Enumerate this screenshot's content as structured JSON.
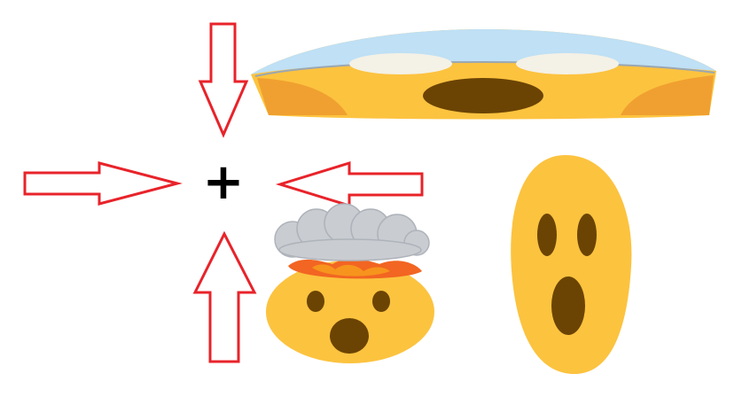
{
  "center_symbol": "+",
  "colors": {
    "arrow_stroke": "#e8232a",
    "face_yellow": "#fcc33f",
    "face_shade": "#f0a030",
    "feature_brown": "#6b4404",
    "smoke_gray": "#c9ccd1",
    "fire_orange": "#f26522",
    "highlight_blue": "#bfe0f5"
  },
  "icons": [
    "arrow-down-icon",
    "arrow-right-icon",
    "arrow-left-icon",
    "arrow-up-icon",
    "stretched-astonished-face-icon",
    "exploding-head-emoji-icon",
    "elongated-surprised-face-icon"
  ]
}
